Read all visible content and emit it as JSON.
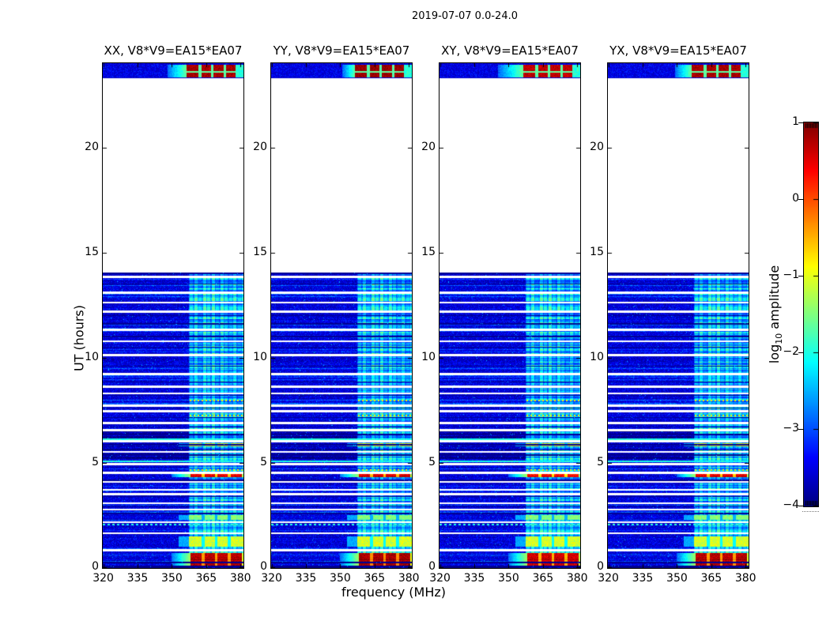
{
  "chart_data": {
    "type": "heatmap",
    "title": "2019-07-07 0.0-24.0",
    "baseline": "V8*V9=EA15*EA07",
    "panels": [
      {
        "title": "XX, V8*V9=EA15*EA07",
        "polarization": "XX",
        "bloom_f0": 348.0,
        "hot_offset": 0.0
      },
      {
        "title": "YY, V8*V9=EA15*EA07",
        "polarization": "YY",
        "bloom_f0": 351.0,
        "hot_offset": 0.08
      },
      {
        "title": "XY, V8*V9=EA15*EA07",
        "polarization": "XY",
        "bloom_f0": 345.5,
        "hot_offset": -0.12
      },
      {
        "title": "YX, V8*V9=EA15*EA07",
        "polarization": "YX",
        "bloom_f0": 349.0,
        "hot_offset": 0.0
      }
    ],
    "x_axis": {
      "label": "frequency (MHz)",
      "min": 319.8,
      "max": 381.3,
      "ticks": [
        320,
        335,
        350,
        365,
        380
      ]
    },
    "y_axis": {
      "label": "UT (hours)",
      "min": 0,
      "max": 24,
      "ticks": [
        0,
        5,
        10,
        15,
        20
      ]
    },
    "colorbar": {
      "label_prefix": "log",
      "label_sub": "10",
      "label_suffix": " amplitude",
      "min": -4,
      "max": 1,
      "ticks": [
        1,
        0,
        -1,
        -2,
        -3,
        -4
      ],
      "colormap": "jet"
    },
    "time_segments": [
      [
        0.0,
        14.05
      ],
      [
        23.27,
        24.0
      ]
    ],
    "background_level": -3.6,
    "rfi_band": {
      "f0": 357.5,
      "f1": 381.3,
      "stripe_spacing_mhz": 1.9,
      "stripe_levels": [
        -1.9,
        -1.65,
        -2.15,
        -1.55,
        -1.8,
        -1.5,
        -2.0,
        -1.6,
        -1.85,
        -2.05,
        -1.7,
        -2.1,
        -1.8
      ]
    },
    "block_separators_mhz": [
      363.7,
      369.5,
      375.1
    ],
    "white_gaps_hours": [
      13.85,
      13.08,
      12.62,
      12.18,
      11.33,
      10.78,
      10.12,
      9.22,
      8.62,
      8.3,
      7.72,
      7.45,
      6.9,
      6.55,
      6.02,
      5.52,
      4.95,
      4.52,
      4.1,
      3.72,
      3.5,
      3.08,
      2.78,
      2.18,
      1.65,
      0.85
    ],
    "black_rows_hours": [
      14.0,
      13.5,
      12.0,
      11.6,
      11.0,
      10.5,
      9.6,
      8.85,
      8.2,
      7.6,
      7.15,
      6.7,
      6.35,
      5.85,
      5.62,
      5.38,
      4.17,
      3.4,
      2.95,
      2.6,
      0.26,
      0.08
    ],
    "cyan_rows_hours": [
      6.12,
      5.08
    ],
    "dash_rows_hours": [
      2.08
    ],
    "band_dash_rows_hours": [
      7.95,
      7.25,
      4.67
    ],
    "hot_rows": [
      {
        "t0": 0.05,
        "t1": 0.72,
        "level": 0.4
      },
      {
        "t0": 4.33,
        "t1": 4.47,
        "level": 0.15
      }
    ],
    "green_rows": [
      {
        "t0": 1.0,
        "t1": 1.5,
        "level": -1.35
      },
      {
        "t0": 2.3,
        "t1": 2.52,
        "level": -1.75
      },
      {
        "t0": 5.78,
        "t1": 5.95,
        "level": -1.2
      }
    ],
    "top_band": {
      "t0": 23.27,
      "t1": 24.0,
      "hot_f0": 356.5,
      "hot_f1": 378.0,
      "hot_level": 0.6,
      "separators_mhz": [
        362.3,
        367.6,
        373.1
      ],
      "mid_gap_hour": 23.6
    },
    "dark_band": {
      "t0": 5.2,
      "t1": 6.6
    }
  }
}
